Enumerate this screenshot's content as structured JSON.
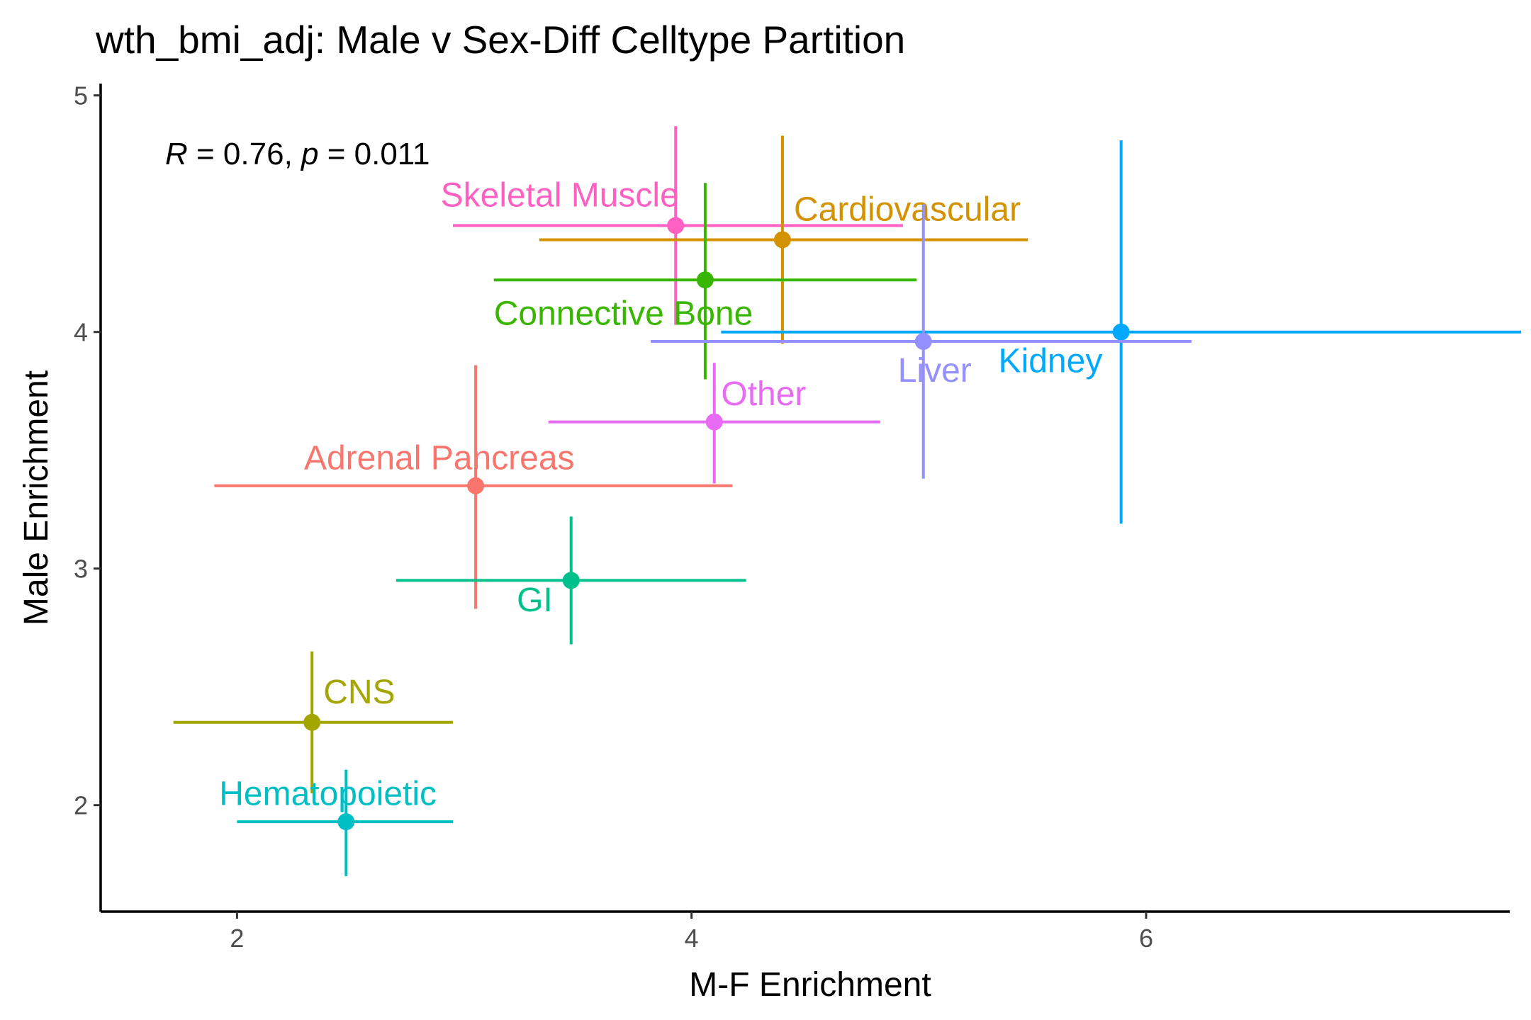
{
  "chart_data": {
    "type": "scatter",
    "title": "wth_bmi_adj: Male v Sex-Diff Celltype Partition",
    "xlabel": "M-F Enrichment",
    "ylabel": "Male Enrichment",
    "xlim": [
      1.4,
      7.6
    ],
    "ylim": [
      1.55,
      5.05
    ],
    "xticks": [
      2,
      4,
      6
    ],
    "yticks": [
      2,
      3,
      4,
      5
    ],
    "grid": false,
    "annotation": {
      "r_symbol": "R",
      "r_text": " = 0.76, ",
      "p_symbol": "p",
      "p_text": " = 0.011"
    },
    "points": [
      {
        "name": "Skeletal Muscle",
        "x": 3.93,
        "y": 4.45,
        "xmin": 2.95,
        "xmax": 4.93,
        "ymin": 4.03,
        "ymax": 4.87,
        "color": "#FF61C3",
        "label_x": 3.42,
        "label_y": 4.53,
        "label_anchor": "middle"
      },
      {
        "name": "Cardiovascular",
        "x": 4.4,
        "y": 4.39,
        "xmin": 3.33,
        "xmax": 5.48,
        "ymin": 3.95,
        "ymax": 4.83,
        "color": "#D39200",
        "label_x": 4.45,
        "label_y": 4.47,
        "label_anchor": "start"
      },
      {
        "name": "Connective Bone",
        "x": 4.06,
        "y": 4.22,
        "xmin": 3.13,
        "xmax": 4.99,
        "ymin": 3.8,
        "ymax": 4.63,
        "color": "#39B600",
        "label_x": 3.13,
        "label_y": 4.03,
        "label_anchor": "start"
      },
      {
        "name": "Kidney",
        "x": 5.89,
        "y": 4.0,
        "xmin": 4.13,
        "xmax": 7.65,
        "ymin": 3.19,
        "ymax": 4.81,
        "color": "#00A9FF",
        "label_x": 5.35,
        "label_y": 3.83,
        "label_anchor": "start"
      },
      {
        "name": "Liver",
        "x": 5.02,
        "y": 3.96,
        "xmin": 3.82,
        "xmax": 6.2,
        "ymin": 3.38,
        "ymax": 4.54,
        "color": "#9590FF",
        "label_x": 5.07,
        "label_y": 3.79,
        "label_anchor": "middle"
      },
      {
        "name": "Other",
        "x": 4.1,
        "y": 3.62,
        "xmin": 3.37,
        "xmax": 4.83,
        "ymin": 3.36,
        "ymax": 3.87,
        "color": "#E76BF3",
        "label_x": 4.13,
        "label_y": 3.69,
        "label_anchor": "start"
      },
      {
        "name": "Adrenal Pancreas",
        "x": 3.05,
        "y": 3.35,
        "xmin": 1.9,
        "xmax": 4.18,
        "ymin": 2.83,
        "ymax": 3.86,
        "color": "#F8766D",
        "label_x": 2.89,
        "label_y": 3.42,
        "label_anchor": "middle"
      },
      {
        "name": "GI",
        "x": 3.47,
        "y": 2.95,
        "xmin": 2.7,
        "xmax": 4.24,
        "ymin": 2.68,
        "ymax": 3.22,
        "color": "#00C08B",
        "label_x": 3.31,
        "label_y": 2.82,
        "label_anchor": "middle"
      },
      {
        "name": "CNS",
        "x": 2.33,
        "y": 2.35,
        "xmin": 1.72,
        "xmax": 2.95,
        "ymin": 2.05,
        "ymax": 2.65,
        "color": "#A3A500",
        "label_x": 2.38,
        "label_y": 2.43,
        "label_anchor": "start"
      },
      {
        "name": "Hematopoietic",
        "x": 2.48,
        "y": 1.93,
        "xmin": 2.0,
        "xmax": 2.95,
        "ymin": 1.7,
        "ymax": 2.15,
        "color": "#00BFC4",
        "label_x": 2.4,
        "label_y": 2.0,
        "label_anchor": "middle"
      }
    ]
  }
}
